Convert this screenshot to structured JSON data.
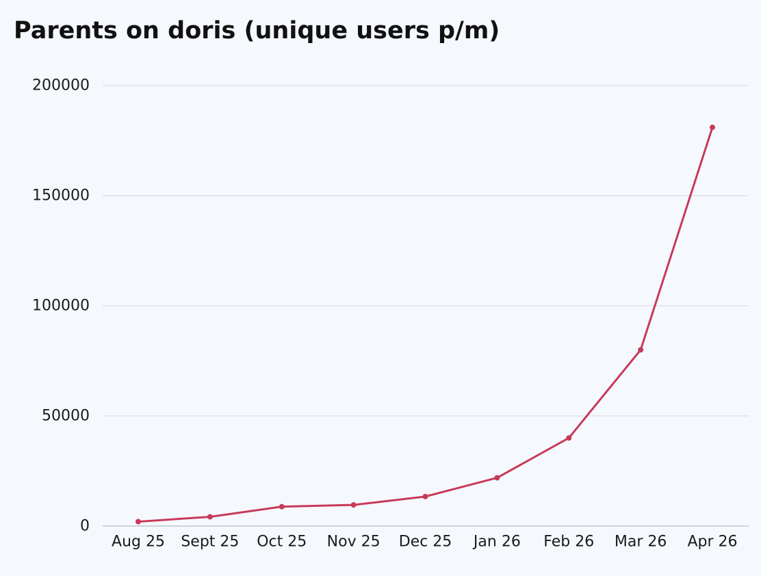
{
  "chart_data": {
    "type": "line",
    "title": "Parents on doris (unique users p/m)",
    "xlabel": "",
    "ylabel": "",
    "categories": [
      "Aug 25",
      "Sept 25",
      "Oct 25",
      "Nov 25",
      "Dec 25",
      "Jan 26",
      "Feb 26",
      "Mar 26",
      "Apr 26"
    ],
    "series": [
      {
        "values": [
          2000,
          4200,
          8800,
          9600,
          13400,
          21900,
          40000,
          80000,
          181000
        ],
        "color": "#c8395a"
      }
    ],
    "ylim": [
      0,
      200000
    ],
    "yticks": [
      "0",
      "50000",
      "100000",
      "150000",
      "200000"
    ],
    "grid": true,
    "legend": "none"
  }
}
